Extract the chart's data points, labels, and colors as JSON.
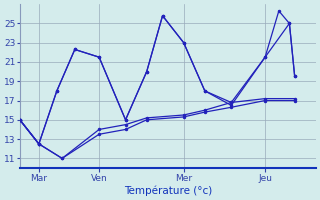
{
  "title": "Température (°c)",
  "bg_color": "#d4ecec",
  "line_color": "#2222bb",
  "grid_color": "#99aabb",
  "yticks": [
    11,
    13,
    15,
    17,
    19,
    21,
    23,
    25
  ],
  "ylim": [
    10.0,
    27.0
  ],
  "xtick_labels": [
    "Mar",
    "Ven",
    "Mer",
    "Jeu"
  ],
  "xtick_positions": [
    18,
    75,
    155,
    232
  ],
  "xlim": [
    0,
    280
  ],
  "lines": [
    {
      "x": [
        0,
        18,
        40,
        75,
        100,
        120,
        155,
        175,
        200,
        232,
        260
      ],
      "y": [
        15,
        12.5,
        11.0,
        13.5,
        14.0,
        15.0,
        15.3,
        15.8,
        16.3,
        17.0,
        17.0
      ]
    },
    {
      "x": [
        0,
        18,
        40,
        75,
        100,
        120,
        155,
        175,
        200,
        232,
        260
      ],
      "y": [
        15,
        12.5,
        11.0,
        14.0,
        14.5,
        15.2,
        15.5,
        16.0,
        16.8,
        17.2,
        17.2
      ]
    },
    {
      "x": [
        0,
        18,
        35,
        52,
        75,
        100,
        120,
        135,
        155,
        175,
        200,
        232,
        255,
        260
      ],
      "y": [
        15,
        12.5,
        18.0,
        22.3,
        21.5,
        15.0,
        20.0,
        25.8,
        23.0,
        18.0,
        16.5,
        21.5,
        25.0,
        19.5
      ]
    },
    {
      "x": [
        0,
        18,
        35,
        52,
        75,
        100,
        120,
        135,
        155,
        175,
        200,
        232,
        245,
        255,
        260
      ],
      "y": [
        15,
        12.5,
        18.0,
        22.3,
        21.5,
        15.0,
        20.0,
        25.8,
        23.0,
        18.0,
        16.8,
        21.5,
        26.3,
        25.0,
        19.5
      ]
    }
  ]
}
